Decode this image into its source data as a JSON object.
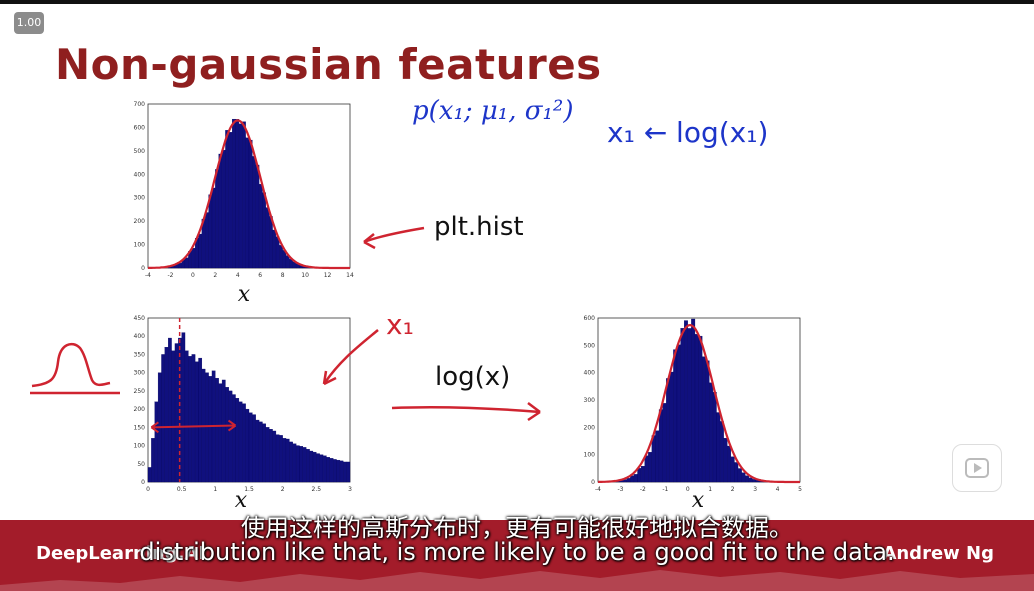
{
  "player": {
    "speed_label": "1.00",
    "play_icon": "play-icon"
  },
  "slide": {
    "title": "Non-gaussian features",
    "formula": "p(x₁; μ₁, σ₁²)",
    "transform": "x₁ ← log(x₁)",
    "plt_label": "plt.hist",
    "x1_label": "x₁",
    "logx_label": "log(x)",
    "brand": "DeepLearning.AI",
    "author": "Andrew Ng",
    "colors": {
      "title": "#8f1f1f",
      "bars": "#10107e",
      "fit": "#cf2430",
      "ink": "#1d35c9"
    }
  },
  "subtitles": {
    "chinese": "使用这样的高斯分布时，更有可能很好地拟合数据。",
    "english": "distribution like that, is more likely to be a good fit to the data."
  },
  "chart_data": [
    {
      "id": "hist-top",
      "type": "bar",
      "xlabel": "x",
      "xlim": [
        -4,
        14
      ],
      "ylim": [
        0,
        700
      ],
      "xticks": [
        -4,
        -2,
        0,
        2,
        4,
        6,
        8,
        10,
        12,
        14
      ],
      "yticks": [
        0,
        100,
        200,
        300,
        400,
        500,
        600,
        700
      ],
      "mean": 4,
      "sd": 2,
      "peak": 630,
      "noise": [
        0,
        0,
        0,
        -2,
        3,
        -4,
        6,
        -5,
        8,
        -10,
        12,
        -8,
        15,
        -12,
        10,
        20,
        -15,
        25,
        -18,
        15,
        5,
        -10,
        18,
        -20,
        12,
        -8,
        10,
        -15,
        6,
        -4,
        8,
        -6,
        3,
        -2,
        2,
        0,
        0,
        0,
        0,
        0,
        0,
        0,
        0,
        0,
        0
      ]
    },
    {
      "id": "hist-bottom-left",
      "type": "bar",
      "xlabel": "x",
      "xlim": [
        0,
        3
      ],
      "ylim": [
        0,
        450
      ],
      "xticks": [
        0,
        0.5,
        1,
        1.5,
        2,
        2.5,
        3
      ],
      "yticks": [
        0,
        50,
        100,
        150,
        200,
        250,
        300,
        350,
        400,
        450
      ],
      "values": [
        40,
        120,
        220,
        300,
        350,
        370,
        395,
        360,
        380,
        395,
        410,
        360,
        345,
        350,
        330,
        340,
        310,
        300,
        290,
        305,
        285,
        270,
        280,
        260,
        250,
        240,
        230,
        220,
        215,
        200,
        190,
        185,
        170,
        165,
        160,
        150,
        145,
        140,
        130,
        128,
        120,
        118,
        110,
        105,
        100,
        98,
        95,
        90,
        85,
        82,
        78,
        75,
        72,
        68,
        65,
        62,
        60,
        58,
        55,
        55
      ]
    },
    {
      "id": "hist-bottom-right",
      "type": "bar",
      "xlabel": "x",
      "xlim": [
        -4,
        5
      ],
      "ylim": [
        0,
        600
      ],
      "xticks": [
        -4,
        -3,
        -2,
        -1,
        0,
        1,
        2,
        3,
        4,
        5
      ],
      "yticks": [
        0,
        100,
        200,
        300,
        400,
        500,
        600
      ],
      "mean": 0.1,
      "sd": 1,
      "peak": 580,
      "noise": [
        0,
        0,
        0,
        0,
        2,
        -3,
        5,
        -6,
        8,
        -10,
        14,
        -12,
        16,
        -15,
        20,
        -12,
        18,
        -10,
        15,
        20,
        -18,
        22,
        -14,
        12,
        -20,
        16,
        -10,
        12,
        -8,
        10,
        -6,
        4,
        -3,
        2,
        0,
        0,
        0,
        0,
        0,
        0,
        0,
        0,
        0,
        0,
        0
      ]
    }
  ]
}
